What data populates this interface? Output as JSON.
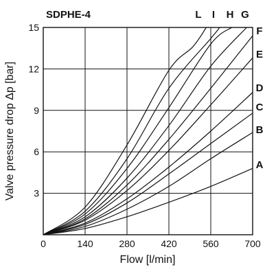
{
  "chart_data": {
    "type": "line",
    "title": "SDPHE-4",
    "xlabel": "Flow [l/min]",
    "ylabel": "Valve pressure drop  Δp [bar]",
    "xlim": [
      0,
      700
    ],
    "ylim": [
      0,
      15
    ],
    "xticks": [
      "0",
      "140",
      "280",
      "420",
      "560",
      "700"
    ],
    "yticks": [
      "3",
      "6",
      "9",
      "12",
      "15"
    ],
    "grid": true,
    "series": [
      {
        "name": "A",
        "x": [
          0,
          140,
          280,
          420,
          560,
          700
        ],
        "y": [
          0,
          0.45,
          1.3,
          2.35,
          3.5,
          4.8
        ]
      },
      {
        "name": "B",
        "x": [
          0,
          140,
          280,
          420,
          560,
          700
        ],
        "y": [
          0,
          0.6,
          1.85,
          3.5,
          5.5,
          7.4
        ]
      },
      {
        "name": "C",
        "x": [
          0,
          140,
          280,
          420,
          560,
          700
        ],
        "y": [
          0,
          0.75,
          2.3,
          4.4,
          6.6,
          8.8
        ]
      },
      {
        "name": "D",
        "x": [
          0,
          140,
          280,
          420,
          560,
          700
        ],
        "y": [
          0,
          0.85,
          2.6,
          4.9,
          7.5,
          10.3
        ]
      },
      {
        "name": "E",
        "x": [
          0,
          140,
          280,
          420,
          560,
          700
        ],
        "y": [
          0,
          1.05,
          3.2,
          6.1,
          9.4,
          12.8
        ]
      },
      {
        "name": "F",
        "x": [
          0,
          140,
          280,
          420,
          560,
          700
        ],
        "y": [
          0,
          1.15,
          3.6,
          6.9,
          10.6,
          14.4
        ]
      },
      {
        "name": "G",
        "x": [
          0,
          140,
          280,
          420,
          560,
          680
        ],
        "y": [
          0,
          1.3,
          4.1,
          7.9,
          12.2,
          15
        ]
      },
      {
        "name": "H",
        "x": [
          0,
          140,
          280,
          420,
          560,
          630
        ],
        "y": [
          0,
          1.5,
          4.8,
          9.2,
          13.8,
          15
        ]
      },
      {
        "name": "I",
        "x": [
          0,
          140,
          280,
          420,
          560,
          590
        ],
        "y": [
          0,
          1.7,
          5.5,
          10.6,
          14.2,
          15
        ]
      },
      {
        "name": "L",
        "x": [
          0,
          140,
          280,
          420,
          500,
          545
        ],
        "y": [
          0,
          2.0,
          6.5,
          11.9,
          13.6,
          15
        ]
      }
    ],
    "curve_labels_top": [
      "L",
      "I",
      "H",
      "G"
    ],
    "curve_labels_right": [
      "F",
      "E",
      "D",
      "C",
      "B",
      "A"
    ]
  }
}
